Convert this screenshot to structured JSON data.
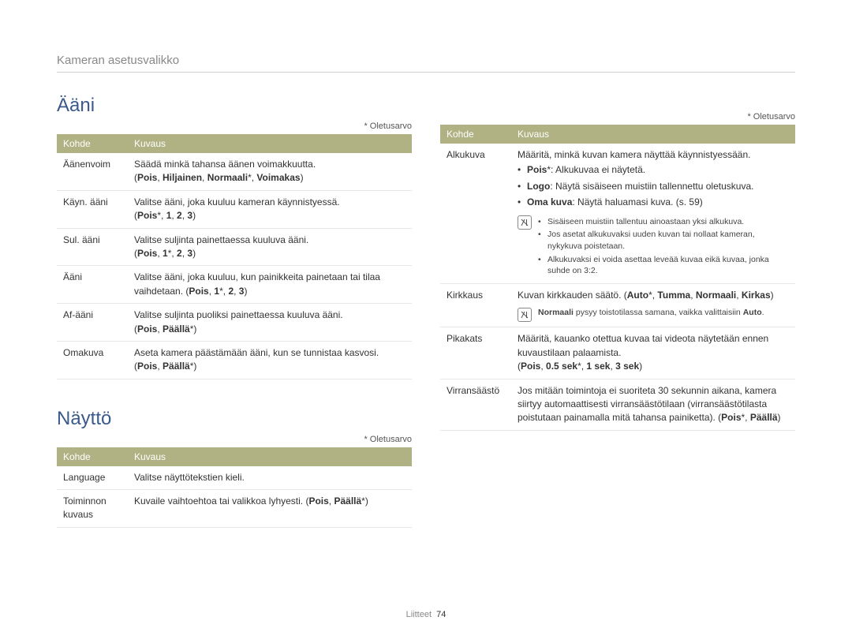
{
  "breadcrumb": "Kameran asetusvalikko",
  "default_note": "* Oletusarvo",
  "headers": {
    "kohde": "Kohde",
    "kuvaus": "Kuvaus"
  },
  "footer": {
    "label": "Liitteet",
    "page": "74"
  },
  "aani": {
    "title": "Ääni",
    "rows": [
      {
        "kohde": "Äänenvoim",
        "lines": [
          {
            "plain": "Säädä minkä tahansa äänen voimakkuutta."
          },
          {
            "options": [
              {
                "t": "Pois",
                "b": true
              },
              {
                "t": ", "
              },
              {
                "t": "Hiljainen",
                "b": true
              },
              {
                "t": ", "
              },
              {
                "t": "Normaali",
                "b": true
              },
              {
                "t": "*, "
              },
              {
                "t": "Voimakas",
                "b": true
              }
            ],
            "paren": true
          }
        ]
      },
      {
        "kohde": "Käyn. ääni",
        "lines": [
          {
            "plain": "Valitse ääni, joka kuuluu kameran käynnistyessä."
          },
          {
            "options": [
              {
                "t": "Pois",
                "b": true
              },
              {
                "t": "*, "
              },
              {
                "t": "1",
                "b": true
              },
              {
                "t": ", "
              },
              {
                "t": "2",
                "b": true
              },
              {
                "t": ", "
              },
              {
                "t": "3",
                "b": true
              }
            ],
            "paren": true
          }
        ]
      },
      {
        "kohde": "Sul. ääni",
        "lines": [
          {
            "plain": "Valitse suljinta painettaessa kuuluva ääni."
          },
          {
            "options": [
              {
                "t": "Pois",
                "b": true
              },
              {
                "t": ", "
              },
              {
                "t": "1",
                "b": true
              },
              {
                "t": "*, "
              },
              {
                "t": "2",
                "b": true
              },
              {
                "t": ", "
              },
              {
                "t": "3",
                "b": true
              }
            ],
            "paren": true
          }
        ]
      },
      {
        "kohde": "Ääni",
        "lines": [
          {
            "mixed": [
              {
                "t": "Valitse ääni, joka kuuluu, kun painikkeita painetaan tai tilaa vaihdetaan. ("
              },
              {
                "t": "Pois",
                "b": true
              },
              {
                "t": ", "
              },
              {
                "t": "1",
                "b": true
              },
              {
                "t": "*, "
              },
              {
                "t": "2",
                "b": true
              },
              {
                "t": ", "
              },
              {
                "t": "3",
                "b": true
              },
              {
                "t": ")"
              }
            ]
          }
        ]
      },
      {
        "kohde": "Af-ääni",
        "lines": [
          {
            "plain": "Valitse suljinta puoliksi painettaessa kuuluva ääni."
          },
          {
            "options": [
              {
                "t": "Pois",
                "b": true
              },
              {
                "t": ", "
              },
              {
                "t": "Päällä",
                "b": true
              },
              {
                "t": "*"
              }
            ],
            "paren": true
          }
        ]
      },
      {
        "kohde": "Omakuva",
        "lines": [
          {
            "mixed": [
              {
                "t": "Aseta kamera päästämään ääni, kun se tunnistaa kasvosi. ("
              },
              {
                "t": "Pois",
                "b": true
              },
              {
                "t": ", "
              },
              {
                "t": "Päällä",
                "b": true
              },
              {
                "t": "*)"
              }
            ]
          }
        ]
      }
    ]
  },
  "naytto": {
    "title": "Näyttö",
    "rows_left": [
      {
        "kohde": "Language",
        "lines": [
          {
            "plain": "Valitse näyttötekstien kieli."
          }
        ]
      },
      {
        "kohde": "Toiminnon kuvaus",
        "lines": [
          {
            "mixed": [
              {
                "t": "Kuvaile vaihtoehtoa tai valikkoa lyhyesti. ("
              },
              {
                "t": "Pois",
                "b": true
              },
              {
                "t": ", "
              },
              {
                "t": "Päällä",
                "b": true
              },
              {
                "t": "*)"
              }
            ]
          }
        ]
      }
    ],
    "rows_right": [
      {
        "kohde": "Alkukuva",
        "top_plain": "Määritä, minkä kuvan kamera näyttää käynnistyessään.",
        "bullets": [
          [
            {
              "t": "Pois",
              "b": true
            },
            {
              "t": "*: Alkukuvaa ei näytetä."
            }
          ],
          [
            {
              "t": "Logo",
              "b": true
            },
            {
              "t": ": Näytä sisäiseen muistiin tallennettu oletuskuva."
            }
          ],
          [
            {
              "t": "Oma kuva",
              "b": true
            },
            {
              "t": ": Näytä haluamasi kuva. (s. 59)"
            }
          ]
        ],
        "note_bullets": [
          "Sisäiseen muistiin tallentuu ainoastaan yksi alkukuva.",
          "Jos asetat alkukuvaksi uuden kuvan tai nollaat kameran, nykykuva poistetaan.",
          "Alkukuvaksi ei voida asettaa leveää kuvaa eikä kuvaa, jonka suhde on 3:2."
        ]
      },
      {
        "kohde": "Kirkkaus",
        "lines": [
          {
            "mixed": [
              {
                "t": "Kuvan kirkkauden säätö. ("
              },
              {
                "t": "Auto",
                "b": true
              },
              {
                "t": "*, "
              },
              {
                "t": "Tumma",
                "b": true
              },
              {
                "t": ", "
              },
              {
                "t": "Normaali",
                "b": true
              },
              {
                "t": ", "
              },
              {
                "t": "Kirkas",
                "b": true
              },
              {
                "t": ")"
              }
            ]
          }
        ],
        "note_mixed": [
          {
            "t": "Normaali",
            "b": true
          },
          {
            "t": " pysyy toistotilassa samana, vaikka valittaisiin "
          },
          {
            "t": "Auto",
            "b": true
          },
          {
            "t": "."
          }
        ]
      },
      {
        "kohde": "Pikakats",
        "lines": [
          {
            "plain": "Määritä, kauanko otettua kuvaa tai videota näytetään ennen kuvaustilaan palaamista."
          },
          {
            "options": [
              {
                "t": "Pois",
                "b": true
              },
              {
                "t": ", "
              },
              {
                "t": "0.5 sek",
                "b": true
              },
              {
                "t": "*, "
              },
              {
                "t": "1 sek",
                "b": true
              },
              {
                "t": ", "
              },
              {
                "t": "3 sek",
                "b": true
              }
            ],
            "paren": true
          }
        ]
      },
      {
        "kohde": "Virransäästö",
        "lines": [
          {
            "mixed": [
              {
                "t": "Jos mitään toimintoja ei suoriteta 30 sekunnin aikana, kamera siirtyy automaattisesti virransäästötilaan (virransäästötilasta poistutaan painamalla mitä tahansa painiketta). ("
              },
              {
                "t": "Pois",
                "b": true
              },
              {
                "t": "*, "
              },
              {
                "t": "Päällä",
                "b": true
              },
              {
                "t": ")"
              }
            ]
          }
        ]
      }
    ]
  }
}
